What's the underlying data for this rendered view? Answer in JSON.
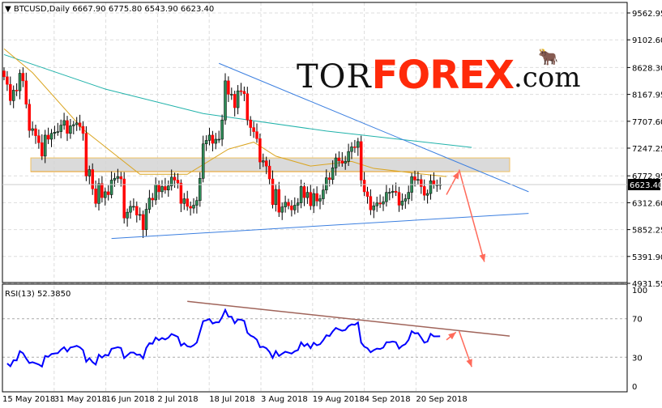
{
  "header": {
    "symbol_label": "BTCUSD,Daily",
    "open": "6667.90",
    "high": "6775.80",
    "low": "6543.90",
    "close": "6623.40"
  },
  "logo": {
    "part1": "TOR",
    "part2": "FOREX",
    "part3": ".com"
  },
  "colors": {
    "bull": "#2e8b57",
    "bear": "#ff0000",
    "ma_fast": "#daa520",
    "ma_slow": "#20b2aa",
    "trendline": "#3b7fe0",
    "rsi": "#0000ff",
    "rsi_trend": "#a0645a",
    "arrow": "#ff6a5a"
  },
  "chart_data": [
    {
      "type": "candlestick",
      "title": "BTCUSD,Daily",
      "x_start": "2018-05-15",
      "x_tick_labels": [
        "15 May 2018",
        "31 May 2018",
        "16 Jun 2018",
        "2 Jul 2018",
        "18 Jul 2018",
        "3 Aug 2018",
        "19 Aug 2018",
        "4 Sep 2018",
        "20 Sep 2018"
      ],
      "y_tick_labels": [
        "9562.95",
        "9102.60",
        "8628.30",
        "8167.95",
        "7707.60",
        "7247.25",
        "6772.95",
        "6312.60",
        "5852.25",
        "5391.90",
        "4931.55"
      ],
      "ylim": [
        4931.55,
        9562.95
      ],
      "current_price_label": "6623.40",
      "closes": [
        8470,
        8340,
        8060,
        8240,
        8230,
        8530,
        8400,
        8000,
        7550,
        7580,
        7460,
        7340,
        7110,
        7470,
        7400,
        7500,
        7520,
        7530,
        7640,
        7720,
        7500,
        7630,
        7650,
        7680,
        7620,
        7500,
        6770,
        6880,
        6550,
        6300,
        6640,
        6400,
        6500,
        6450,
        6700,
        6730,
        6760,
        6720,
        6050,
        6150,
        6250,
        6250,
        6100,
        6110,
        5850,
        6200,
        6390,
        6360,
        6620,
        6500,
        6590,
        6530,
        6600,
        6750,
        6700,
        6650,
        6300,
        6380,
        6250,
        6220,
        6270,
        6350,
        6730,
        7320,
        7380,
        7470,
        7330,
        7400,
        7400,
        7730,
        8400,
        8170,
        8170,
        7940,
        8230,
        8220,
        8180,
        7730,
        7600,
        7530,
        7410,
        7010,
        7030,
        6940,
        6720,
        6280,
        6540,
        6150,
        6240,
        6320,
        6260,
        6190,
        6270,
        6310,
        6590,
        6400,
        6490,
        6260,
        6470,
        6340,
        6380,
        6530,
        6740,
        6710,
        6910,
        7080,
        7030,
        6990,
        7020,
        7190,
        7270,
        7260,
        7360,
        6700,
        6500,
        6420,
        6190,
        6260,
        6310,
        6290,
        6330,
        6490,
        6490,
        6510,
        6490,
        6270,
        6340,
        6380,
        6490,
        6760,
        6700,
        6710,
        6590,
        6440,
        6470,
        6690,
        6620,
        6620,
        6623.4
      ],
      "ma_fast": [
        [
          0,
          8950
        ],
        [
          9,
          8540
        ],
        [
          25,
          7570
        ],
        [
          43,
          6800
        ],
        [
          58,
          6800
        ],
        [
          71,
          7230
        ],
        [
          79,
          7350
        ],
        [
          86,
          7110
        ],
        [
          97,
          6940
        ],
        [
          110,
          7020
        ],
        [
          117,
          6900
        ],
        [
          133,
          6800
        ],
        [
          140,
          6760
        ]
      ],
      "ma_slow": [
        [
          0,
          8850
        ],
        [
          32,
          8260
        ],
        [
          63,
          7840
        ],
        [
          102,
          7540
        ],
        [
          148,
          7260
        ]
      ],
      "resistance_zone": [
        6845,
        7080
      ],
      "horizontal_level": 6845,
      "trendlines": [
        [
          [
            68,
            8700
          ],
          [
            166,
            6500
          ]
        ],
        [
          [
            34,
            5700
          ],
          [
            166,
            6130
          ]
        ]
      ],
      "forecast_arrows": [
        [
          [
            140,
            6450
          ],
          [
            144,
            6850
          ]
        ],
        [
          [
            144,
            6880
          ],
          [
            152,
            5300
          ]
        ]
      ]
    },
    {
      "type": "line",
      "title": "RSI(13) 52.3850",
      "levels": [
        "100",
        "70",
        "30",
        "0"
      ],
      "ylim": [
        0,
        100
      ],
      "trendline": [
        [
          58,
          88
        ],
        [
          160,
          52
        ]
      ],
      "forecast_arrows": [
        [
          [
            140,
            48
          ],
          [
            143,
            56
          ]
        ],
        [
          [
            144,
            57
          ],
          [
            148,
            20
          ]
        ]
      ]
    }
  ]
}
